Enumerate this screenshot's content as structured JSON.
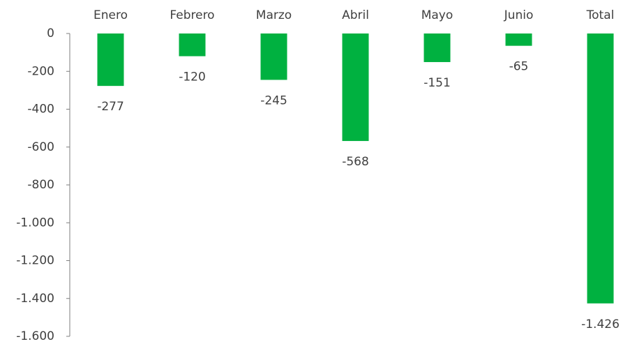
{
  "chart_data": {
    "type": "bar",
    "categories": [
      "Enero",
      "Febrero",
      "Marzo",
      "Abril",
      "Mayo",
      "Junio",
      "Total"
    ],
    "values": [
      -277,
      -120,
      -245,
      -568,
      -151,
      -65,
      -1426
    ],
    "value_labels": [
      "-277",
      "-120",
      "-245",
      "-568",
      "-151",
      "-65",
      "-1.426"
    ],
    "color": "#00b140",
    "ylim": [
      -1600,
      0
    ],
    "yticks": [
      0,
      -200,
      -400,
      -600,
      -800,
      {
        "value": -1000,
        "label": "-1.000"
      },
      {
        "value": -1200,
        "label": "-1.200"
      },
      {
        "value": -1400,
        "label": "-1.400"
      },
      {
        "value": -1600,
        "label": "-1.600"
      }
    ],
    "grid": false
  }
}
